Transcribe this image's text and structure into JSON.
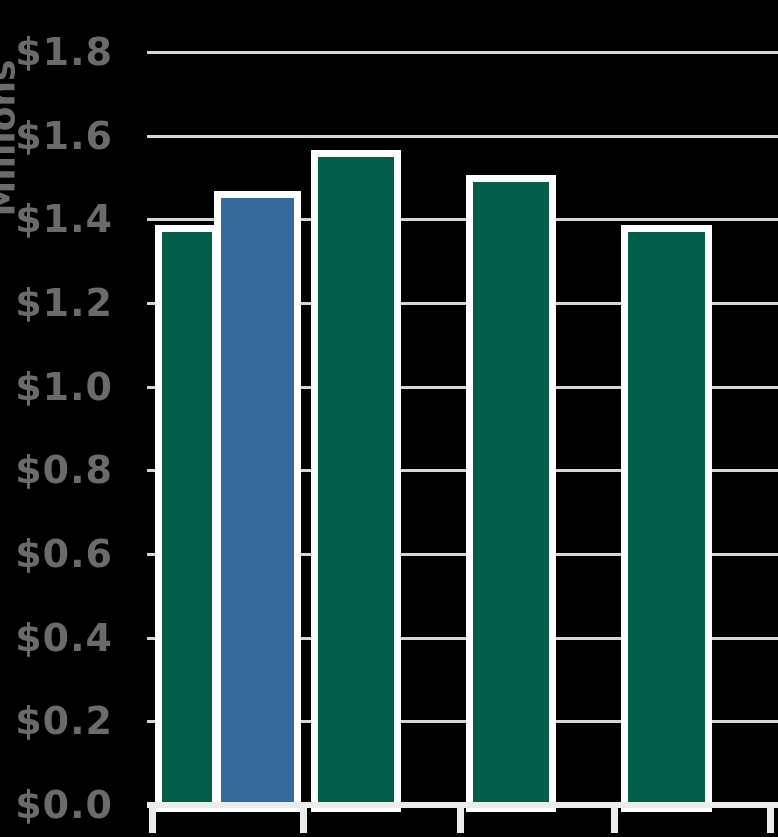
{
  "chart_data": {
    "type": "bar",
    "title": "",
    "ylabel": "Millions",
    "xlabel": "",
    "values": [
      1.37,
      1.45,
      1.55,
      1.49,
      1.37
    ],
    "bar_color_names": [
      "green",
      "blue",
      "green",
      "green",
      "green"
    ],
    "highlighted_bar_index": 1,
    "ylim": [
      0,
      1.8
    ],
    "ytick_step": 0.2,
    "ytick_labels": [
      "$0.0",
      "$0.2",
      "$0.4",
      "$0.6",
      "$0.8",
      "$1.0",
      "$1.2",
      "$1.4",
      "$1.6",
      "$1.8"
    ],
    "xtick_labels": [],
    "grid": "horizontal",
    "legend": "none"
  },
  "colors": {
    "background": "#000000",
    "bar_green": "#035E4B",
    "bar_blue": "#376A9B",
    "bar_border": "#FFFFFF",
    "gridline": "#D6D6D6",
    "axis_line": "#ECECEC",
    "label_text": "#6B6B6B"
  }
}
